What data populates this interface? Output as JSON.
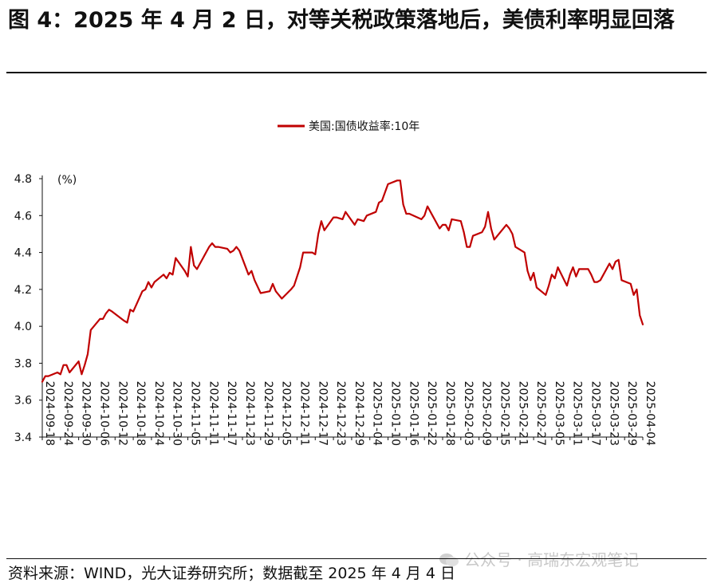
{
  "figure": {
    "title": "图 4：2025 年 4 月 2 日，对等关税政策落地后，美债利率明显回落",
    "source": "资料来源：WIND，光大证券研究所；数据截至 2025 年 4 月 4 日",
    "watermark": "公众号 · 高瑞东宏观笔记"
  },
  "chart_data": {
    "type": "line",
    "title": "",
    "xlabel": "",
    "ylabel": "(%)",
    "ylim": [
      3.4,
      4.8
    ],
    "yticks": [
      3.4,
      3.6,
      3.8,
      4.0,
      4.2,
      4.4,
      4.6,
      4.8
    ],
    "ytick_labels": [
      "3.4",
      "3.6",
      "3.8",
      "4.0",
      "4.2",
      "4.4",
      "4.6",
      "4.8"
    ],
    "xlim": [
      "2024-09-18",
      "2025-04-04"
    ],
    "xtick_labels": [
      "2024-09-18",
      "2024-09-24",
      "2024-09-30",
      "2024-10-06",
      "2024-10-12",
      "2024-10-18",
      "2024-10-24",
      "2024-10-30",
      "2024-11-05",
      "2024-11-11",
      "2024-11-17",
      "2024-11-23",
      "2024-11-29",
      "2024-12-05",
      "2024-12-11",
      "2024-12-17",
      "2024-12-23",
      "2024-12-29",
      "2025-01-04",
      "2025-01-10",
      "2025-01-16",
      "2025-01-22",
      "2025-01-28",
      "2025-02-03",
      "2025-02-09",
      "2025-02-15",
      "2025-02-21",
      "2025-02-27",
      "2025-03-05",
      "2025-03-11",
      "2025-03-17",
      "2025-03-23",
      "2025-03-29",
      "2025-04-04"
    ],
    "legend_position": "top-center",
    "grid": false,
    "series": [
      {
        "name": "美国:国债收益率:10年",
        "color": "#c00000",
        "x": [
          "2024-09-18",
          "2024-09-19",
          "2024-09-20",
          "2024-09-23",
          "2024-09-24",
          "2024-09-25",
          "2024-09-26",
          "2024-09-27",
          "2024-09-30",
          "2024-10-01",
          "2024-10-02",
          "2024-10-03",
          "2024-10-04",
          "2024-10-07",
          "2024-10-08",
          "2024-10-09",
          "2024-10-10",
          "2024-10-11",
          "2024-10-15",
          "2024-10-16",
          "2024-10-17",
          "2024-10-18",
          "2024-10-21",
          "2024-10-22",
          "2024-10-23",
          "2024-10-24",
          "2024-10-25",
          "2024-10-28",
          "2024-10-29",
          "2024-10-30",
          "2024-10-31",
          "2024-11-01",
          "2024-11-04",
          "2024-11-05",
          "2024-11-06",
          "2024-11-07",
          "2024-11-08",
          "2024-11-12",
          "2024-11-13",
          "2024-11-14",
          "2024-11-15",
          "2024-11-18",
          "2024-11-19",
          "2024-11-20",
          "2024-11-21",
          "2024-11-22",
          "2024-11-25",
          "2024-11-26",
          "2024-11-27",
          "2024-11-29",
          "2024-12-02",
          "2024-12-03",
          "2024-12-04",
          "2024-12-05",
          "2024-12-06",
          "2024-12-09",
          "2024-12-10",
          "2024-12-11",
          "2024-12-12",
          "2024-12-13",
          "2024-12-16",
          "2024-12-17",
          "2024-12-18",
          "2024-12-19",
          "2024-12-20",
          "2024-12-23",
          "2024-12-24",
          "2024-12-26",
          "2024-12-27",
          "2024-12-30",
          "2024-12-31",
          "2025-01-02",
          "2025-01-03",
          "2025-01-06",
          "2025-01-07",
          "2025-01-08",
          "2025-01-10",
          "2025-01-13",
          "2025-01-14",
          "2025-01-15",
          "2025-01-16",
          "2025-01-17",
          "2025-01-21",
          "2025-01-22",
          "2025-01-23",
          "2025-01-24",
          "2025-01-27",
          "2025-01-28",
          "2025-01-29",
          "2025-01-30",
          "2025-01-31",
          "2025-02-03",
          "2025-02-04",
          "2025-02-05",
          "2025-02-06",
          "2025-02-07",
          "2025-02-10",
          "2025-02-11",
          "2025-02-12",
          "2025-02-13",
          "2025-02-14",
          "2025-02-18",
          "2025-02-19",
          "2025-02-20",
          "2025-02-21",
          "2025-02-24",
          "2025-02-25",
          "2025-02-26",
          "2025-02-27",
          "2025-02-28",
          "2025-03-03",
          "2025-03-04",
          "2025-03-05",
          "2025-03-06",
          "2025-03-07",
          "2025-03-10",
          "2025-03-11",
          "2025-03-12",
          "2025-03-13",
          "2025-03-14",
          "2025-03-17",
          "2025-03-18",
          "2025-03-19",
          "2025-03-20",
          "2025-03-21",
          "2025-03-24",
          "2025-03-25",
          "2025-03-26",
          "2025-03-27",
          "2025-03-28",
          "2025-03-31",
          "2025-04-01",
          "2025-04-02",
          "2025-04-03",
          "2025-04-04"
        ],
        "values": [
          3.7,
          3.73,
          3.73,
          3.75,
          3.74,
          3.79,
          3.79,
          3.75,
          3.81,
          3.74,
          3.79,
          3.85,
          3.98,
          4.04,
          4.04,
          4.07,
          4.09,
          4.08,
          4.03,
          4.02,
          4.09,
          4.08,
          4.19,
          4.2,
          4.24,
          4.21,
          4.24,
          4.28,
          4.26,
          4.29,
          4.28,
          4.37,
          4.3,
          4.27,
          4.43,
          4.33,
          4.31,
          4.43,
          4.45,
          4.43,
          4.43,
          4.42,
          4.4,
          4.41,
          4.43,
          4.41,
          4.28,
          4.3,
          4.25,
          4.18,
          4.19,
          4.23,
          4.19,
          4.17,
          4.15,
          4.2,
          4.22,
          4.27,
          4.32,
          4.4,
          4.4,
          4.39,
          4.5,
          4.57,
          4.52,
          4.59,
          4.59,
          4.58,
          4.62,
          4.55,
          4.58,
          4.57,
          4.6,
          4.62,
          4.67,
          4.68,
          4.77,
          4.79,
          4.79,
          4.66,
          4.61,
          4.61,
          4.58,
          4.6,
          4.65,
          4.62,
          4.53,
          4.55,
          4.55,
          4.52,
          4.58,
          4.57,
          4.51,
          4.43,
          4.43,
          4.49,
          4.51,
          4.54,
          4.62,
          4.53,
          4.47,
          4.55,
          4.53,
          4.5,
          4.43,
          4.4,
          4.3,
          4.25,
          4.29,
          4.21,
          4.17,
          4.22,
          4.28,
          4.26,
          4.32,
          4.22,
          4.28,
          4.32,
          4.27,
          4.31,
          4.31,
          4.28,
          4.24,
          4.24,
          4.25,
          4.34,
          4.31,
          4.35,
          4.36,
          4.25,
          4.23,
          4.17,
          4.2,
          4.06,
          4.01
        ]
      }
    ]
  }
}
